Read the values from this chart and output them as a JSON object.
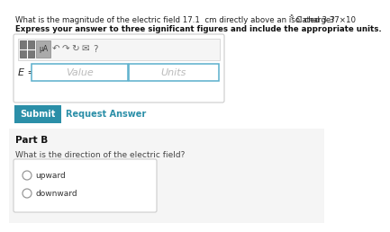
{
  "white": "#ffffff",
  "light_gray": "#f2f2f2",
  "mid_gray": "#e8e8e8",
  "border_gray": "#cccccc",
  "dark_gray": "#888888",
  "text_dark": "#222222",
  "text_bold": "#111111",
  "box_border": "#5aafcc",
  "submit_bg": "#2b8fa8",
  "submit_fg": "#ffffff",
  "link_color": "#2b8fa8",
  "toolbar_icon_dark": "#777777",
  "toolbar_icon_light": "#aaaaaa",
  "line1a": "What is the magnitude of the electric field 17.1  cm directly above an isolated 3.37×10",
  "line1_sup": "-5",
  "line1b": " C charge?",
  "line2": "Express your answer to three significant figures and include the appropriate units.",
  "mu_label": "μA",
  "e_label": "E =",
  "value_ph": "Value",
  "units_ph": "Units",
  "submit_text": "Submit",
  "request_text": "Request Answer",
  "partb": "Part B",
  "partb_q": "What is the direction of the electric field?",
  "opt1": "upward",
  "opt2": "downward"
}
